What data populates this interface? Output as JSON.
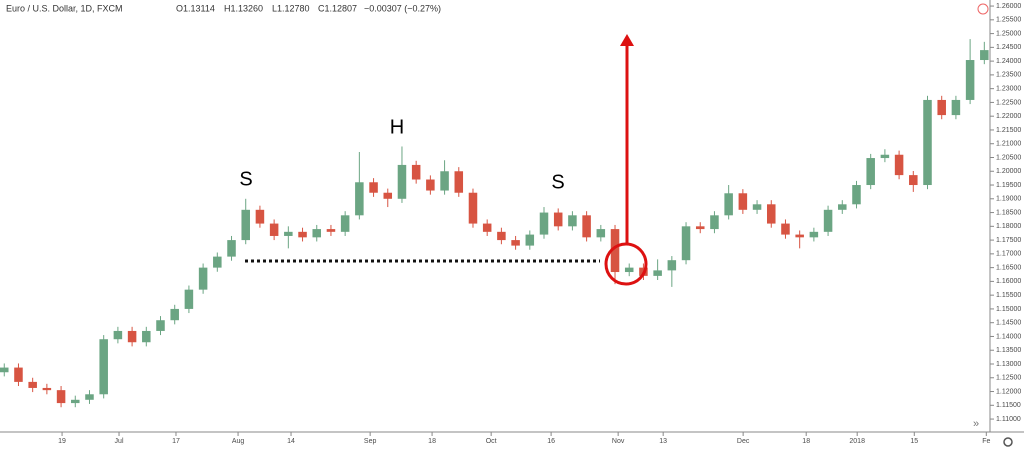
{
  "chart_data": {
    "type": "candlestick",
    "title": "Euro / U.S. Dollar, 1D, FXCM",
    "header_values": [
      "O1.13114",
      "H1.13260",
      "L1.12780",
      "C1.12807",
      "−0.00307 (−0.27%)"
    ],
    "annotations": [
      "S",
      "H",
      "S"
    ],
    "up_color": "#6ba583",
    "down_color": "#d75442",
    "open": [
      1.127,
      1.1287,
      1.1235,
      1.1213,
      1.1205,
      1.1158,
      1.117,
      1.119,
      1.139,
      1.142,
      1.1379,
      1.142,
      1.1459,
      1.15,
      1.157,
      1.165,
      1.169,
      1.175,
      1.186,
      1.181,
      1.1765,
      1.178,
      1.176,
      1.179,
      1.178,
      1.184,
      1.196,
      1.1922,
      1.19,
      1.2023,
      1.197,
      1.193,
      1.2,
      1.1922,
      1.181,
      1.178,
      1.175,
      1.173,
      1.177,
      1.185,
      1.18,
      1.184,
      1.176,
      1.179,
      1.1634,
      1.165,
      1.162,
      1.164,
      1.1677,
      1.18,
      1.179,
      1.184,
      1.192,
      1.186,
      1.188,
      1.181,
      1.177,
      1.176,
      1.178,
      1.186,
      1.188,
      1.195,
      1.2048,
      1.206,
      1.1986,
      1.195,
      1.2259,
      1.2204,
      1.2259,
      1.2404
    ],
    "high": [
      1.1302,
      1.1302,
      1.125,
      1.1228,
      1.122,
      1.1185,
      1.1205,
      1.1405,
      1.1435,
      1.1435,
      1.1435,
      1.1474,
      1.1515,
      1.1585,
      1.1665,
      1.1705,
      1.1765,
      1.19,
      1.1875,
      1.1825,
      1.18,
      1.1795,
      1.1805,
      1.1805,
      1.1855,
      1.207,
      1.1975,
      1.1937,
      1.209,
      1.2038,
      1.1985,
      1.204,
      1.2015,
      1.1937,
      1.1825,
      1.1795,
      1.1765,
      1.1785,
      1.187,
      1.1865,
      1.1855,
      1.1855,
      1.1805,
      1.1805,
      1.1665,
      1.1665,
      1.168,
      1.1692,
      1.1815,
      1.1815,
      1.1855,
      1.195,
      1.1935,
      1.1895,
      1.1895,
      1.1825,
      1.1785,
      1.1795,
      1.1875,
      1.1895,
      1.1965,
      1.2063,
      1.208,
      1.2075,
      1.2001,
      1.2274,
      1.2274,
      1.2274,
      1.248,
      1.247
    ],
    "low": [
      1.1255,
      1.122,
      1.1198,
      1.119,
      1.1143,
      1.1143,
      1.1155,
      1.1175,
      1.1375,
      1.1364,
      1.1364,
      1.1405,
      1.1444,
      1.1485,
      1.1555,
      1.1635,
      1.1675,
      1.1735,
      1.1795,
      1.175,
      1.172,
      1.1745,
      1.1745,
      1.1765,
      1.1765,
      1.1825,
      1.1907,
      1.187,
      1.1885,
      1.1955,
      1.1915,
      1.1915,
      1.1907,
      1.1795,
      1.1765,
      1.1735,
      1.1715,
      1.1715,
      1.1755,
      1.1785,
      1.1785,
      1.1745,
      1.1745,
      1.159,
      1.1619,
      1.1605,
      1.1605,
      1.158,
      1.1662,
      1.1775,
      1.1775,
      1.1825,
      1.1845,
      1.1845,
      1.1795,
      1.1755,
      1.172,
      1.1745,
      1.1765,
      1.1845,
      1.1865,
      1.1935,
      1.2033,
      1.1971,
      1.1925,
      1.1935,
      1.2189,
      1.2189,
      1.2244,
      1.2389
    ],
    "close": [
      1.1287,
      1.1235,
      1.1213,
      1.1205,
      1.1158,
      1.117,
      1.119,
      1.139,
      1.142,
      1.1379,
      1.142,
      1.1459,
      1.15,
      1.157,
      1.165,
      1.169,
      1.175,
      1.186,
      1.181,
      1.1765,
      1.178,
      1.176,
      1.179,
      1.178,
      1.184,
      1.196,
      1.1922,
      1.19,
      1.2023,
      1.197,
      1.193,
      1.2,
      1.1922,
      1.181,
      1.178,
      1.175,
      1.173,
      1.177,
      1.185,
      1.18,
      1.184,
      1.176,
      1.179,
      1.1634,
      1.165,
      1.162,
      1.164,
      1.1677,
      1.18,
      1.179,
      1.184,
      1.192,
      1.186,
      1.188,
      1.181,
      1.177,
      1.176,
      1.178,
      1.186,
      1.188,
      1.195,
      1.2048,
      1.206,
      1.1986,
      1.195,
      1.2259,
      1.2204,
      1.2259,
      1.2404,
      1.244
    ],
    "xlim": [
      -0.3,
      69.4
    ],
    "xticks": [
      {
        "value": 4.07,
        "label": "19"
      },
      {
        "value": 8.08,
        "label": "Jul"
      },
      {
        "value": 12.09,
        "label": "17"
      },
      {
        "value": 16.46,
        "label": "Aug"
      },
      {
        "value": 20.19,
        "label": "14"
      },
      {
        "value": 25.76,
        "label": "Sep"
      },
      {
        "value": 30.12,
        "label": "18"
      },
      {
        "value": 34.28,
        "label": "Oct"
      },
      {
        "value": 38.5,
        "label": "16"
      },
      {
        "value": 43.22,
        "label": "Nov"
      },
      {
        "value": 46.39,
        "label": "13"
      },
      {
        "value": 52.02,
        "label": "Dec"
      },
      {
        "value": 56.46,
        "label": "18"
      },
      {
        "value": 60.05,
        "label": "2018"
      },
      {
        "value": 64.07,
        "label": "15"
      },
      {
        "value": 69.14,
        "label": "Fe"
      }
    ],
    "ylim": [
      1.1053,
      1.2622
    ],
    "yticks": [
      {
        "value": 1.11,
        "label": "1.11000"
      },
      {
        "value": 1.115,
        "label": "1.11500"
      },
      {
        "value": 1.12,
        "label": "1.12000"
      },
      {
        "value": 1.125,
        "label": "1.12500"
      },
      {
        "value": 1.13,
        "label": "1.13000"
      },
      {
        "value": 1.135,
        "label": "1.13500"
      },
      {
        "value": 1.14,
        "label": "1.14000"
      },
      {
        "value": 1.145,
        "label": "1.14500"
      },
      {
        "value": 1.15,
        "label": "1.15000"
      },
      {
        "value": 1.155,
        "label": "1.15500"
      },
      {
        "value": 1.16,
        "label": "1.16000"
      },
      {
        "value": 1.165,
        "label": "1.16500"
      },
      {
        "value": 1.17,
        "label": "1.17000"
      },
      {
        "value": 1.175,
        "label": "1.17500"
      },
      {
        "value": 1.18,
        "label": "1.18000"
      },
      {
        "value": 1.185,
        "label": "1.18500"
      },
      {
        "value": 1.19,
        "label": "1.19000"
      },
      {
        "value": 1.195,
        "label": "1.19500"
      },
      {
        "value": 1.2,
        "label": "1.20000"
      },
      {
        "value": 1.205,
        "label": "1.20500"
      },
      {
        "value": 1.21,
        "label": "1.21000"
      },
      {
        "value": 1.215,
        "label": "1.21500"
      },
      {
        "value": 1.22,
        "label": "1.22000"
      },
      {
        "value": 1.225,
        "label": "1.22500"
      },
      {
        "value": 1.23,
        "label": "1.23000"
      },
      {
        "value": 1.235,
        "label": "1.23500"
      },
      {
        "value": 1.24,
        "label": "1.24000"
      },
      {
        "value": 1.245,
        "label": "1.24500"
      },
      {
        "value": 1.25,
        "label": "1.25000"
      },
      {
        "value": 1.255,
        "label": "1.25500"
      },
      {
        "value": 1.26,
        "label": "1.26000"
      }
    ]
  }
}
